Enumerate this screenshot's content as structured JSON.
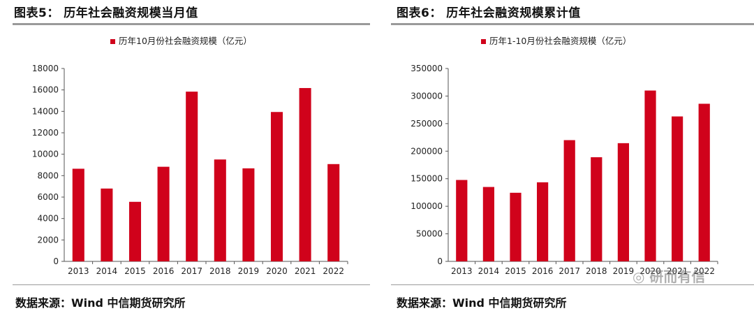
{
  "colors": {
    "bar": "#d0021b",
    "axis": "#555555",
    "rule": "#9a9a9a"
  },
  "watermark": {
    "icon": "wechat-icon",
    "text": "研而有信"
  },
  "chart_data": [
    {
      "type": "bar",
      "figure_title": "图表5： 历年社会融资规模当月值",
      "legend": "历年10月份社会融资规模（亿元）",
      "categories": [
        "2013",
        "2014",
        "2015",
        "2016",
        "2017",
        "2018",
        "2019",
        "2020",
        "2021",
        "2022"
      ],
      "values": [
        8645,
        6797,
        5558,
        8829,
        15840,
        9509,
        8682,
        13941,
        16176,
        9079
      ],
      "ylim": [
        0,
        18000
      ],
      "yticks": [
        0,
        2000,
        4000,
        6000,
        8000,
        10000,
        12000,
        14000,
        16000,
        18000
      ],
      "source": "数据来源：Wind 中信期货研究所"
    },
    {
      "type": "bar",
      "figure_title": "图表6： 历年社会融资规模累计值",
      "legend": "历年1-10月份社会融资规模（亿元）",
      "categories": [
        "2013",
        "2014",
        "2015",
        "2016",
        "2017",
        "2018",
        "2019",
        "2020",
        "2021",
        "2022"
      ],
      "values": [
        147700,
        135000,
        124500,
        143500,
        220000,
        189000,
        214500,
        310000,
        263000,
        286000
      ],
      "ylim": [
        0,
        350000
      ],
      "yticks": [
        0,
        50000,
        100000,
        150000,
        200000,
        250000,
        300000,
        350000
      ],
      "source": "数据来源：Wind 中信期货研究所"
    }
  ]
}
